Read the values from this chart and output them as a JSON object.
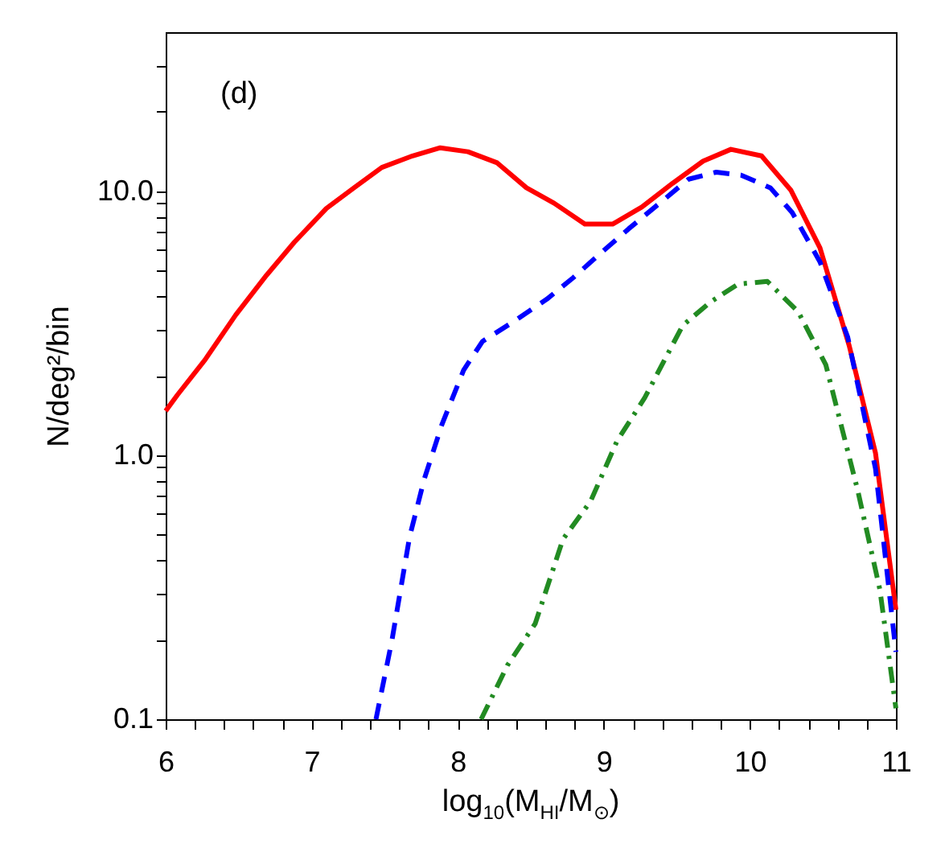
{
  "chart_data": {
    "type": "line",
    "xlabel": "log$_{10}$(M$_{HI}$/M$_{⊙}$)",
    "ylabel": "N/deg²/bin",
    "annotations": [
      "(d)"
    ],
    "log": "y",
    "xlim": [
      6,
      11
    ],
    "ylim": [
      0.1,
      40
    ],
    "xticks": [
      6,
      {
        "value": 6.2,
        "label": null
      },
      {
        "value": 6.4,
        "label": null
      },
      {
        "value": 6.6,
        "label": null
      },
      {
        "value": 6.8,
        "label": null
      },
      7,
      {
        "value": 7.2,
        "label": null
      },
      {
        "value": 7.4,
        "label": null
      },
      {
        "value": 7.6,
        "label": null
      },
      {
        "value": 7.8,
        "label": null
      },
      8,
      {
        "value": 8.2,
        "label": null
      },
      {
        "value": 8.4,
        "label": null
      },
      {
        "value": 8.6,
        "label": null
      },
      {
        "value": 8.8,
        "label": null
      },
      9,
      {
        "value": 9.2,
        "label": null
      },
      {
        "value": 9.4,
        "label": null
      },
      {
        "value": 9.6,
        "label": null
      },
      {
        "value": 9.8,
        "label": null
      },
      10,
      {
        "value": 10.2,
        "label": null
      },
      {
        "value": 10.4,
        "label": null
      },
      {
        "value": 10.6,
        "label": null
      },
      {
        "value": 10.8,
        "label": null
      },
      11
    ],
    "yticks": [
      {
        "value": 0.1,
        "label": "0.1"
      },
      {
        "value": 0.2,
        "label": null
      },
      {
        "value": 0.3,
        "label": null
      },
      {
        "value": 0.4,
        "label": null
      },
      {
        "value": 0.5,
        "label": null
      },
      {
        "value": 0.6,
        "label": null
      },
      {
        "value": 0.7,
        "label": null
      },
      {
        "value": 0.8,
        "label": null
      },
      {
        "value": 0.9,
        "label": null
      },
      {
        "value": 1,
        "label": "1.0"
      },
      {
        "value": 2,
        "label": null
      },
      {
        "value": 3,
        "label": null
      },
      {
        "value": 4,
        "label": null
      },
      {
        "value": 5,
        "label": null
      },
      {
        "value": 6,
        "label": null
      },
      {
        "value": 7,
        "label": null
      },
      {
        "value": 8,
        "label": null
      },
      {
        "value": 9,
        "label": null
      },
      {
        "value": 10,
        "label": "10.0"
      },
      {
        "value": 20,
        "label": null
      },
      {
        "value": 30,
        "label": null
      }
    ],
    "grid": false,
    "series": [
      {
        "color": "#ff0000",
        "line_style": "solid",
        "x": [
          6.0,
          6.08,
          6.27,
          6.48,
          6.69,
          6.88,
          7.1,
          7.29,
          7.48,
          7.69,
          7.88,
          8.07,
          8.27,
          8.47,
          8.66,
          8.87,
          9.06,
          9.26,
          9.47,
          9.68,
          9.87,
          10.08,
          10.28,
          10.48,
          10.68,
          10.86,
          11.0
        ],
        "values": [
          1.47,
          1.69,
          2.3,
          3.4,
          4.8,
          6.4,
          8.6,
          10.3,
          12.3,
          13.6,
          14.6,
          14.1,
          12.8,
          10.3,
          9.0,
          7.5,
          7.5,
          8.7,
          10.7,
          13.0,
          14.4,
          13.6,
          10.1,
          6.1,
          2.6,
          1.02,
          0.26
        ]
      },
      {
        "color": "#0000ff",
        "line_style": "dashed",
        "x": [
          7.44,
          7.55,
          7.67,
          7.77,
          7.89,
          8.04,
          8.17,
          8.38,
          8.61,
          8.79,
          8.96,
          9.17,
          9.36,
          9.58,
          9.77,
          9.94,
          10.14,
          10.29,
          10.48,
          10.67,
          10.86,
          11.0
        ],
        "values": [
          0.1,
          0.2,
          0.49,
          0.81,
          1.3,
          2.1,
          2.7,
          3.2,
          3.9,
          4.7,
          5.7,
          7.2,
          8.8,
          11.1,
          11.8,
          11.5,
          10.3,
          8.3,
          5.4,
          2.8,
          0.89,
          0.18
        ]
      },
      {
        "color": "#228b22",
        "line_style": "dashdot",
        "x": [
          8.16,
          8.34,
          8.53,
          8.72,
          8.91,
          9.09,
          9.28,
          9.54,
          9.73,
          9.92,
          10.12,
          10.33,
          10.52,
          10.74,
          10.89,
          11.0
        ],
        "values": [
          0.1,
          0.16,
          0.23,
          0.48,
          0.67,
          1.13,
          1.65,
          3.1,
          3.8,
          4.45,
          4.55,
          3.5,
          2.2,
          0.73,
          0.31,
          0.11
        ]
      }
    ]
  }
}
